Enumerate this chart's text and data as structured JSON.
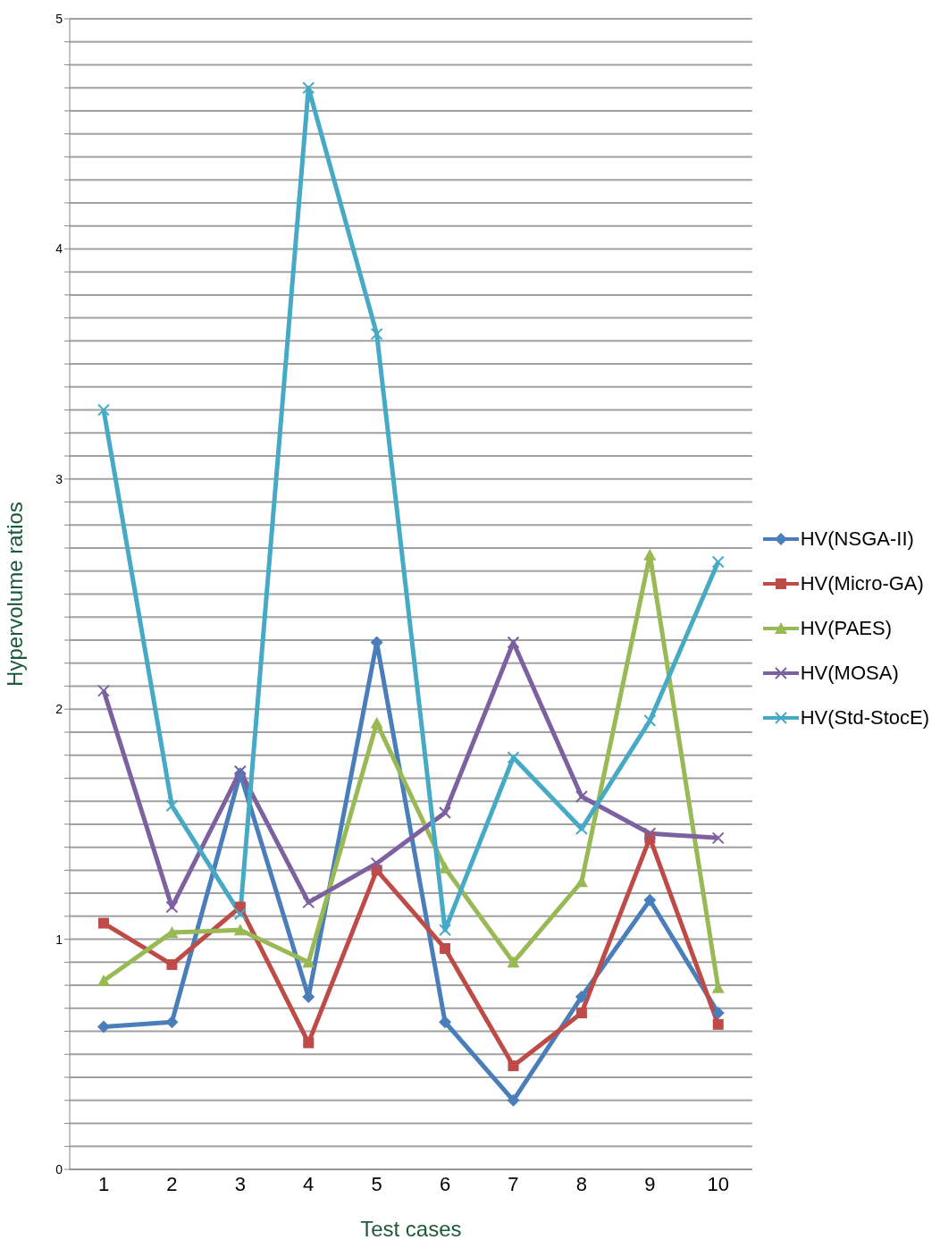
{
  "chart_data": {
    "type": "line",
    "xlabel": "Test cases",
    "ylabel": "Hypervolume ratios",
    "categories": [
      "1",
      "2",
      "3",
      "4",
      "5",
      "6",
      "7",
      "8",
      "9",
      "10"
    ],
    "series": [
      {
        "name": "HV(NSGA-II)",
        "color": "#4a7ebb",
        "marker": "diamond",
        "values": [
          0.62,
          0.64,
          1.72,
          0.75,
          2.29,
          0.64,
          0.3,
          0.75,
          1.17,
          0.68
        ]
      },
      {
        "name": "HV(Micro-GA)",
        "color": "#be4b48",
        "marker": "square",
        "values": [
          1.07,
          0.89,
          1.14,
          0.55,
          1.3,
          0.96,
          0.45,
          0.68,
          1.44,
          0.63
        ]
      },
      {
        "name": "HV(PAES)",
        "color": "#98b954",
        "marker": "triangle",
        "values": [
          0.82,
          1.03,
          1.04,
          0.9,
          1.94,
          1.31,
          0.9,
          1.25,
          2.67,
          0.79
        ]
      },
      {
        "name": "HV(MOSA)",
        "color": "#7d60a0",
        "marker": "cross",
        "values": [
          2.08,
          1.14,
          1.73,
          1.16,
          1.33,
          1.55,
          2.29,
          1.62,
          1.46,
          1.44
        ]
      },
      {
        "name": "HV(Std-StocE)",
        "color": "#46aac5",
        "marker": "cross",
        "values": [
          3.3,
          1.58,
          1.11,
          4.7,
          3.63,
          1.04,
          1.79,
          1.48,
          1.95,
          2.64
        ]
      }
    ],
    "ylim": [
      0,
      5
    ],
    "yticks": [
      0,
      {
        "value": 0.1,
        "label": null
      },
      {
        "value": 0.2,
        "label": null
      },
      {
        "value": 0.3,
        "label": null
      },
      {
        "value": 0.4,
        "label": null
      },
      {
        "value": 0.5,
        "label": null
      },
      {
        "value": 0.6,
        "label": null
      },
      {
        "value": 0.7,
        "label": null
      },
      {
        "value": 0.8,
        "label": null
      },
      {
        "value": 0.9,
        "label": null
      },
      1,
      {
        "value": 1.1,
        "label": null
      },
      {
        "value": 1.2,
        "label": null
      },
      {
        "value": 1.3,
        "label": null
      },
      {
        "value": 1.4,
        "label": null
      },
      {
        "value": 1.5,
        "label": null
      },
      {
        "value": 1.6,
        "label": null
      },
      {
        "value": 1.7,
        "label": null
      },
      {
        "value": 1.8,
        "label": null
      },
      {
        "value": 1.9,
        "label": null
      },
      2,
      {
        "value": 2.1,
        "label": null
      },
      {
        "value": 2.2,
        "label": null
      },
      {
        "value": 2.3,
        "label": null
      },
      {
        "value": 2.4,
        "label": null
      },
      {
        "value": 2.5,
        "label": null
      },
      {
        "value": 2.6,
        "label": null
      },
      {
        "value": 2.7,
        "label": null
      },
      {
        "value": 2.8,
        "label": null
      },
      {
        "value": 2.9,
        "label": null
      },
      3,
      {
        "value": 3.1,
        "label": null
      },
      {
        "value": 3.2,
        "label": null
      },
      {
        "value": 3.3,
        "label": null
      },
      {
        "value": 3.4,
        "label": null
      },
      {
        "value": 3.5,
        "label": null
      },
      {
        "value": 3.6,
        "label": null
      },
      {
        "value": 3.7,
        "label": null
      },
      {
        "value": 3.8,
        "label": null
      },
      {
        "value": 3.9,
        "label": null
      },
      4,
      {
        "value": 4.1,
        "label": null
      },
      {
        "value": 4.2,
        "label": null
      },
      {
        "value": 4.3,
        "label": null
      },
      {
        "value": 4.4,
        "label": null
      },
      {
        "value": 4.5,
        "label": null
      },
      {
        "value": 4.6,
        "label": null
      },
      {
        "value": 4.7,
        "label": null
      },
      {
        "value": 4.8,
        "label": null
      },
      {
        "value": 4.9,
        "label": null
      },
      5
    ],
    "grid": "y",
    "legend": "right",
    "line_style": "solid"
  }
}
